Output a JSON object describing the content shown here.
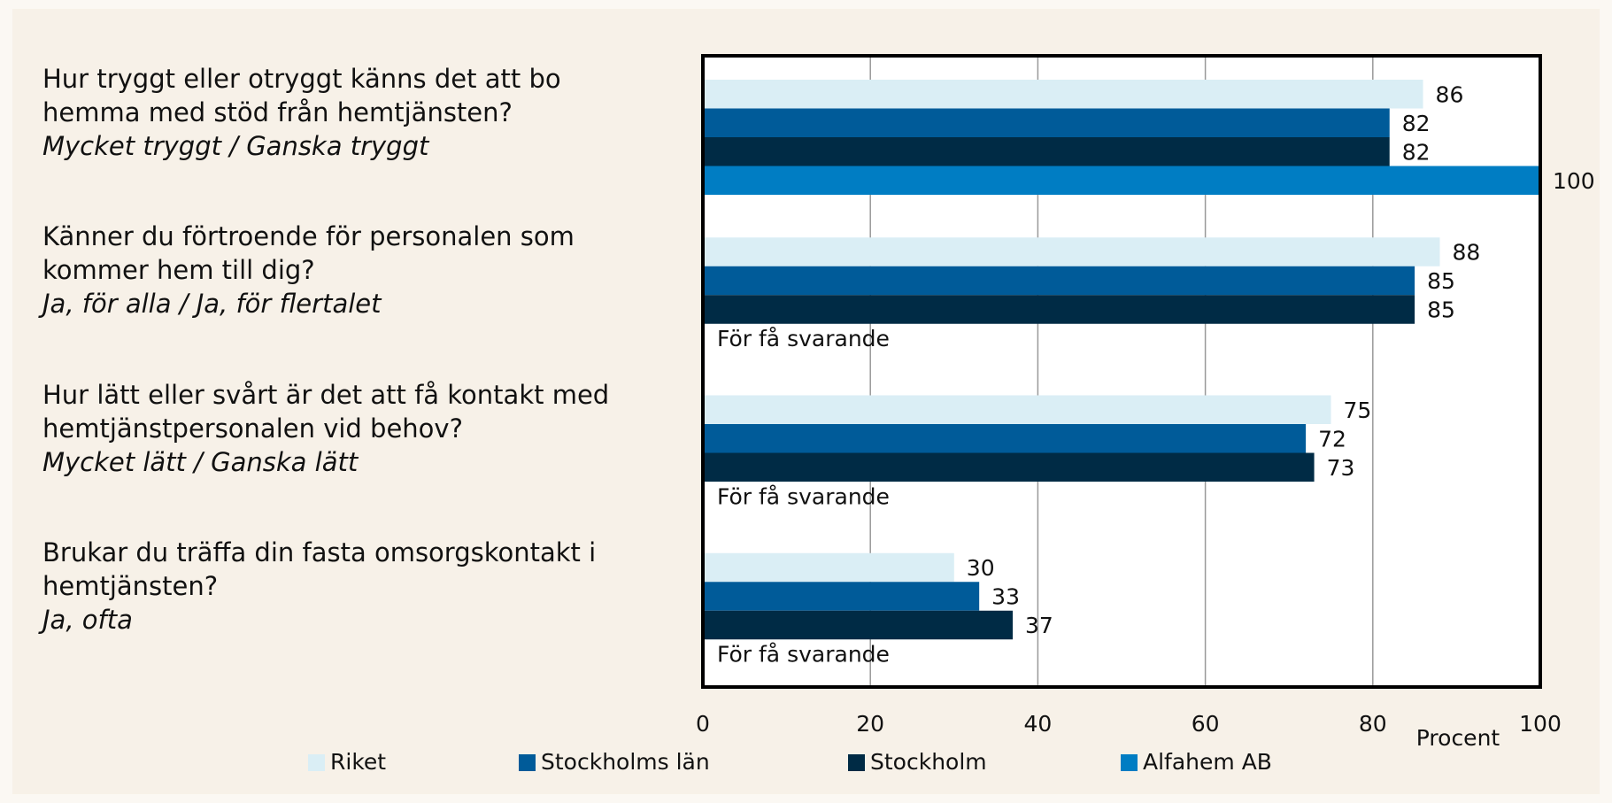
{
  "chart_data": {
    "type": "bar",
    "orientation": "horizontal",
    "categories": [
      "Hur tryggt eller otryggt känns det att bo hemma med stöd från hemtjänsten?",
      "Känner du förtroende för personalen som kommer hem till dig?",
      "Hur lätt eller svårt är det att få kontakt med hemtjänstpersonalen vid behov?",
      "Brukar du träffa din fasta omsorgskontakt i hemtjänsten?"
    ],
    "category_answers": [
      "Mycket tryggt / Ganska tryggt",
      "Ja, för alla / Ja, för flertalet",
      "Mycket lätt / Ganska lätt",
      "Ja, ofta"
    ],
    "series": [
      {
        "name": "Riket",
        "color": "#daeef5",
        "values": [
          86,
          88,
          75,
          30
        ]
      },
      {
        "name": "Stockholms län",
        "color": "#005b99",
        "values": [
          82,
          85,
          72,
          33
        ]
      },
      {
        "name": "Stockholm",
        "color": "#002b45",
        "values": [
          82,
          85,
          73,
          37
        ]
      },
      {
        "name": "Alfahem AB",
        "color": "#007dc3",
        "values": [
          100,
          null,
          null,
          null
        ],
        "value_labels": [
          null,
          "För få svarande",
          "För få svarande",
          "För få svarande"
        ]
      }
    ],
    "x_label": "Procent",
    "xlim": [
      0,
      100
    ],
    "xticks": [
      0,
      20,
      40,
      60,
      80,
      100
    ],
    "grid": true,
    "legend": "bottom"
  }
}
